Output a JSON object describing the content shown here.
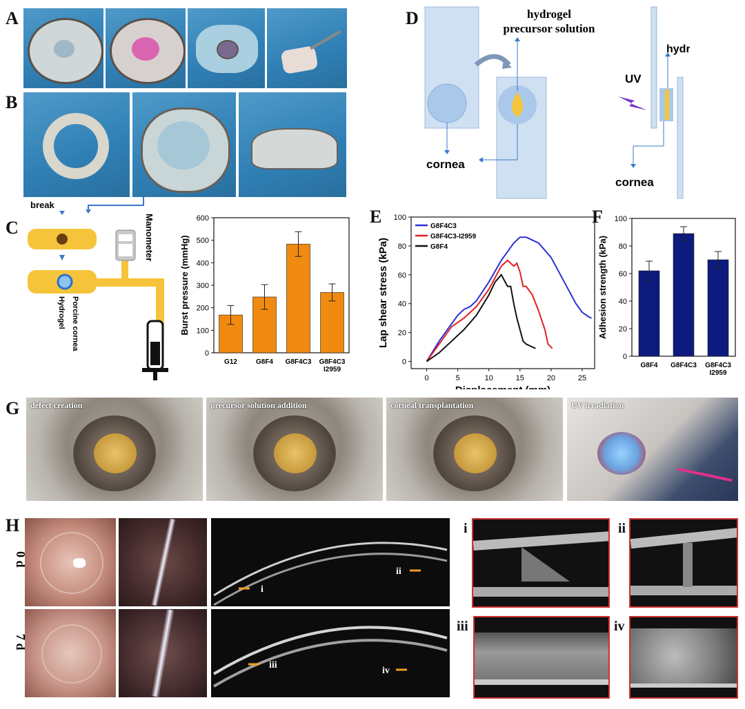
{
  "panels": {
    "A": "A",
    "B": "B",
    "C": "C",
    "D": "D",
    "E": "E",
    "F": "F",
    "G": "G",
    "H": "H"
  },
  "panel_d": {
    "precursor_label": "hydrogel\nprecursor solution",
    "cornea_left": "cornea",
    "cornea_right": "cornea",
    "hydrogel": "hydrogel",
    "uv": "UV"
  },
  "panel_c": {
    "break": "break",
    "manometer": "Manometer",
    "porcine_cornea": "Porcine cornea",
    "hydrogel": "Hydrogel"
  },
  "panel_g": {
    "captions": [
      "defect creation",
      "precursor solution addition",
      "corneal transplantation",
      "UV irradiation"
    ]
  },
  "panel_h": {
    "rows": [
      "0 d",
      "7 d"
    ],
    "oct_markers_top": [
      "i",
      "ii"
    ],
    "oct_markers_bottom": [
      "iii",
      "iv"
    ],
    "zoom_labels": [
      "i",
      "ii",
      "iii",
      "iv"
    ]
  },
  "colors": {
    "orange": "#f08a10",
    "navy": "#0d1a7e",
    "blue_line": "#2b2fd6",
    "red_line": "#e02020",
    "black_line": "#111111",
    "marker": "#f0a020"
  },
  "chart_data": [
    {
      "type": "bar",
      "id": "C",
      "categories": [
        "G12",
        "G8F4",
        "G8F4C3",
        "G8F4C3\nI2959"
      ],
      "values": [
        168,
        248,
        483,
        268
      ],
      "errors": [
        42,
        55,
        55,
        38
      ],
      "ylabel": "Burst pressure (mmHg)",
      "xlabel": "",
      "ylim": [
        0,
        600
      ],
      "yticks": [
        0,
        100,
        200,
        300,
        400,
        500,
        600
      ]
    },
    {
      "type": "line",
      "id": "E",
      "xlabel": "Displacement (mm)",
      "ylabel": "Lap shear stress (kPa)",
      "xlim": [
        -2.5,
        27
      ],
      "ylim": [
        -5,
        100
      ],
      "xticks": [
        0,
        5,
        10,
        15,
        20,
        25
      ],
      "yticks": [
        0,
        20,
        40,
        60,
        80,
        100
      ],
      "series": [
        {
          "name": "G8F4C3",
          "x": [
            0,
            2,
            4,
            5,
            6,
            7,
            8,
            10,
            12,
            14,
            15,
            16,
            18,
            20,
            22,
            24,
            25,
            26,
            26.5
          ],
          "y": [
            0,
            14,
            26,
            32,
            36,
            38,
            42,
            55,
            70,
            82,
            86,
            86,
            82,
            72,
            56,
            40,
            34,
            31,
            30
          ]
        },
        {
          "name": "G8F4C3-I2959",
          "x": [
            0,
            2,
            4,
            6,
            8,
            10,
            11,
            12,
            13,
            14,
            14.5,
            15,
            15.5,
            16,
            17,
            18,
            19,
            19.5,
            20.2
          ],
          "y": [
            0,
            12,
            24,
            30,
            38,
            50,
            58,
            66,
            70,
            66,
            68,
            62,
            52,
            52,
            46,
            35,
            22,
            12,
            9
          ]
        },
        {
          "name": "G8F4",
          "x": [
            0,
            2,
            4,
            6,
            8,
            10,
            11,
            12,
            13,
            13.5,
            14,
            14.5,
            15,
            15.5,
            16,
            17,
            17.5
          ],
          "y": [
            0,
            6,
            14,
            22,
            32,
            46,
            55,
            60,
            52,
            52,
            40,
            30,
            22,
            14,
            12,
            10,
            9
          ]
        }
      ]
    },
    {
      "type": "bar",
      "id": "F",
      "categories": [
        "G8F4",
        "G8F4C3",
        "G8F4C3\nI2959"
      ],
      "values": [
        62,
        89,
        70
      ],
      "errors": [
        7,
        5,
        6
      ],
      "ylabel": "Adhesion strength (kPa)",
      "xlabel": "",
      "ylim": [
        0,
        100
      ],
      "yticks": [
        0,
        20,
        40,
        60,
        80,
        100
      ]
    }
  ]
}
